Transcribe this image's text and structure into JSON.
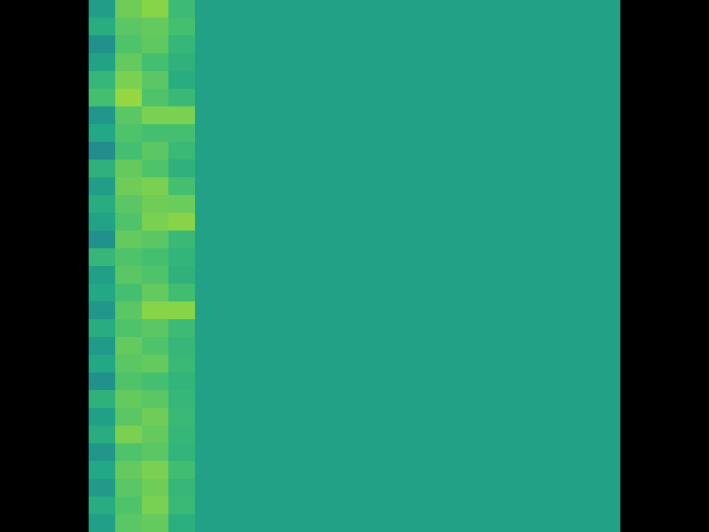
{
  "chart_data": {
    "type": "heatmap",
    "tick_labels": false,
    "grid": false,
    "zlim": [
      0,
      1
    ],
    "cells": [
      [
        0.55,
        0.78,
        0.82,
        0.68,
        0.57,
        0.57,
        0.57,
        0.57,
        0.57,
        0.57,
        0.57,
        0.57,
        0.57,
        0.57,
        0.57,
        0.57,
        0.57,
        0.57,
        0.57,
        0.57
      ],
      [
        0.62,
        0.74,
        0.76,
        0.7,
        0.57,
        0.57,
        0.57,
        0.57,
        0.57,
        0.57,
        0.57,
        0.57,
        0.57,
        0.57,
        0.57,
        0.57,
        0.57,
        0.57,
        0.57,
        0.57
      ],
      [
        0.5,
        0.72,
        0.75,
        0.66,
        0.57,
        0.57,
        0.57,
        0.57,
        0.57,
        0.57,
        0.57,
        0.57,
        0.57,
        0.57,
        0.57,
        0.57,
        0.57,
        0.57,
        0.57,
        0.57
      ],
      [
        0.58,
        0.76,
        0.7,
        0.64,
        0.57,
        0.57,
        0.57,
        0.57,
        0.57,
        0.57,
        0.57,
        0.57,
        0.57,
        0.57,
        0.57,
        0.57,
        0.57,
        0.57,
        0.57,
        0.57
      ],
      [
        0.66,
        0.8,
        0.74,
        0.62,
        0.57,
        0.57,
        0.57,
        0.57,
        0.57,
        0.57,
        0.57,
        0.57,
        0.57,
        0.57,
        0.57,
        0.57,
        0.57,
        0.57,
        0.57,
        0.57
      ],
      [
        0.7,
        0.84,
        0.72,
        0.67,
        0.57,
        0.57,
        0.57,
        0.57,
        0.57,
        0.57,
        0.57,
        0.57,
        0.57,
        0.57,
        0.57,
        0.57,
        0.57,
        0.57,
        0.57,
        0.57
      ],
      [
        0.52,
        0.74,
        0.8,
        0.8,
        0.57,
        0.57,
        0.57,
        0.57,
        0.57,
        0.57,
        0.57,
        0.57,
        0.57,
        0.57,
        0.57,
        0.57,
        0.57,
        0.57,
        0.57,
        0.57
      ],
      [
        0.6,
        0.72,
        0.7,
        0.7,
        0.57,
        0.57,
        0.57,
        0.57,
        0.57,
        0.57,
        0.57,
        0.57,
        0.57,
        0.57,
        0.57,
        0.57,
        0.57,
        0.57,
        0.57,
        0.57
      ],
      [
        0.48,
        0.7,
        0.74,
        0.67,
        0.57,
        0.57,
        0.57,
        0.57,
        0.57,
        0.57,
        0.57,
        0.57,
        0.57,
        0.57,
        0.57,
        0.57,
        0.57,
        0.57,
        0.57,
        0.57
      ],
      [
        0.64,
        0.76,
        0.72,
        0.64,
        0.57,
        0.57,
        0.57,
        0.57,
        0.57,
        0.57,
        0.57,
        0.57,
        0.57,
        0.57,
        0.57,
        0.57,
        0.57,
        0.57,
        0.57,
        0.57
      ],
      [
        0.55,
        0.78,
        0.8,
        0.7,
        0.57,
        0.57,
        0.57,
        0.57,
        0.57,
        0.57,
        0.57,
        0.57,
        0.57,
        0.57,
        0.57,
        0.57,
        0.57,
        0.57,
        0.57,
        0.57
      ],
      [
        0.62,
        0.74,
        0.78,
        0.77,
        0.57,
        0.57,
        0.57,
        0.57,
        0.57,
        0.57,
        0.57,
        0.57,
        0.57,
        0.57,
        0.57,
        0.57,
        0.57,
        0.57,
        0.57,
        0.57
      ],
      [
        0.58,
        0.72,
        0.8,
        0.82,
        0.57,
        0.57,
        0.57,
        0.57,
        0.57,
        0.57,
        0.57,
        0.57,
        0.57,
        0.57,
        0.57,
        0.57,
        0.57,
        0.57,
        0.57,
        0.57
      ],
      [
        0.5,
        0.76,
        0.74,
        0.67,
        0.57,
        0.57,
        0.57,
        0.57,
        0.57,
        0.57,
        0.57,
        0.57,
        0.57,
        0.57,
        0.57,
        0.57,
        0.57,
        0.57,
        0.57,
        0.57
      ],
      [
        0.66,
        0.72,
        0.7,
        0.65,
        0.57,
        0.57,
        0.57,
        0.57,
        0.57,
        0.57,
        0.57,
        0.57,
        0.57,
        0.57,
        0.57,
        0.57,
        0.57,
        0.57,
        0.57,
        0.57
      ],
      [
        0.56,
        0.74,
        0.72,
        0.64,
        0.57,
        0.57,
        0.57,
        0.57,
        0.57,
        0.57,
        0.57,
        0.57,
        0.57,
        0.57,
        0.57,
        0.57,
        0.57,
        0.57,
        0.57,
        0.57
      ],
      [
        0.6,
        0.7,
        0.76,
        0.69,
        0.57,
        0.57,
        0.57,
        0.57,
        0.57,
        0.57,
        0.57,
        0.57,
        0.57,
        0.57,
        0.57,
        0.57,
        0.57,
        0.57,
        0.57,
        0.57
      ],
      [
        0.52,
        0.74,
        0.82,
        0.82,
        0.57,
        0.57,
        0.57,
        0.57,
        0.57,
        0.57,
        0.57,
        0.57,
        0.57,
        0.57,
        0.57,
        0.57,
        0.57,
        0.57,
        0.57,
        0.57
      ],
      [
        0.62,
        0.72,
        0.74,
        0.68,
        0.57,
        0.57,
        0.57,
        0.57,
        0.57,
        0.57,
        0.57,
        0.57,
        0.57,
        0.57,
        0.57,
        0.57,
        0.57,
        0.57,
        0.57,
        0.57
      ],
      [
        0.54,
        0.76,
        0.72,
        0.66,
        0.57,
        0.57,
        0.57,
        0.57,
        0.57,
        0.57,
        0.57,
        0.57,
        0.57,
        0.57,
        0.57,
        0.57,
        0.57,
        0.57,
        0.57,
        0.57
      ],
      [
        0.6,
        0.74,
        0.76,
        0.67,
        0.57,
        0.57,
        0.57,
        0.57,
        0.57,
        0.57,
        0.57,
        0.57,
        0.57,
        0.57,
        0.57,
        0.57,
        0.57,
        0.57,
        0.57,
        0.57
      ],
      [
        0.5,
        0.72,
        0.7,
        0.65,
        0.57,
        0.57,
        0.57,
        0.57,
        0.57,
        0.57,
        0.57,
        0.57,
        0.57,
        0.57,
        0.57,
        0.57,
        0.57,
        0.57,
        0.57,
        0.57
      ],
      [
        0.64,
        0.76,
        0.74,
        0.66,
        0.57,
        0.57,
        0.57,
        0.57,
        0.57,
        0.57,
        0.57,
        0.57,
        0.57,
        0.57,
        0.57,
        0.57,
        0.57,
        0.57,
        0.57,
        0.57
      ],
      [
        0.56,
        0.74,
        0.78,
        0.67,
        0.57,
        0.57,
        0.57,
        0.57,
        0.57,
        0.57,
        0.57,
        0.57,
        0.57,
        0.57,
        0.57,
        0.57,
        0.57,
        0.57,
        0.57,
        0.57
      ],
      [
        0.62,
        0.8,
        0.76,
        0.66,
        0.57,
        0.57,
        0.57,
        0.57,
        0.57,
        0.57,
        0.57,
        0.57,
        0.57,
        0.57,
        0.57,
        0.57,
        0.57,
        0.57,
        0.57,
        0.57
      ],
      [
        0.52,
        0.72,
        0.74,
        0.65,
        0.57,
        0.57,
        0.57,
        0.57,
        0.57,
        0.57,
        0.57,
        0.57,
        0.57,
        0.57,
        0.57,
        0.57,
        0.57,
        0.57,
        0.57,
        0.57
      ],
      [
        0.6,
        0.76,
        0.8,
        0.69,
        0.57,
        0.57,
        0.57,
        0.57,
        0.57,
        0.57,
        0.57,
        0.57,
        0.57,
        0.57,
        0.57,
        0.57,
        0.57,
        0.57,
        0.57,
        0.57
      ],
      [
        0.54,
        0.74,
        0.78,
        0.66,
        0.57,
        0.57,
        0.57,
        0.57,
        0.57,
        0.57,
        0.57,
        0.57,
        0.57,
        0.57,
        0.57,
        0.57,
        0.57,
        0.57,
        0.57,
        0.57
      ],
      [
        0.62,
        0.72,
        0.8,
        0.67,
        0.57,
        0.57,
        0.57,
        0.57,
        0.57,
        0.57,
        0.57,
        0.57,
        0.57,
        0.57,
        0.57,
        0.57,
        0.57,
        0.57,
        0.57,
        0.57
      ],
      [
        0.56,
        0.74,
        0.76,
        0.63,
        0.57,
        0.57,
        0.57,
        0.57,
        0.57,
        0.57,
        0.57,
        0.57,
        0.57,
        0.57,
        0.57,
        0.57,
        0.57,
        0.57,
        0.57,
        0.57
      ]
    ]
  }
}
